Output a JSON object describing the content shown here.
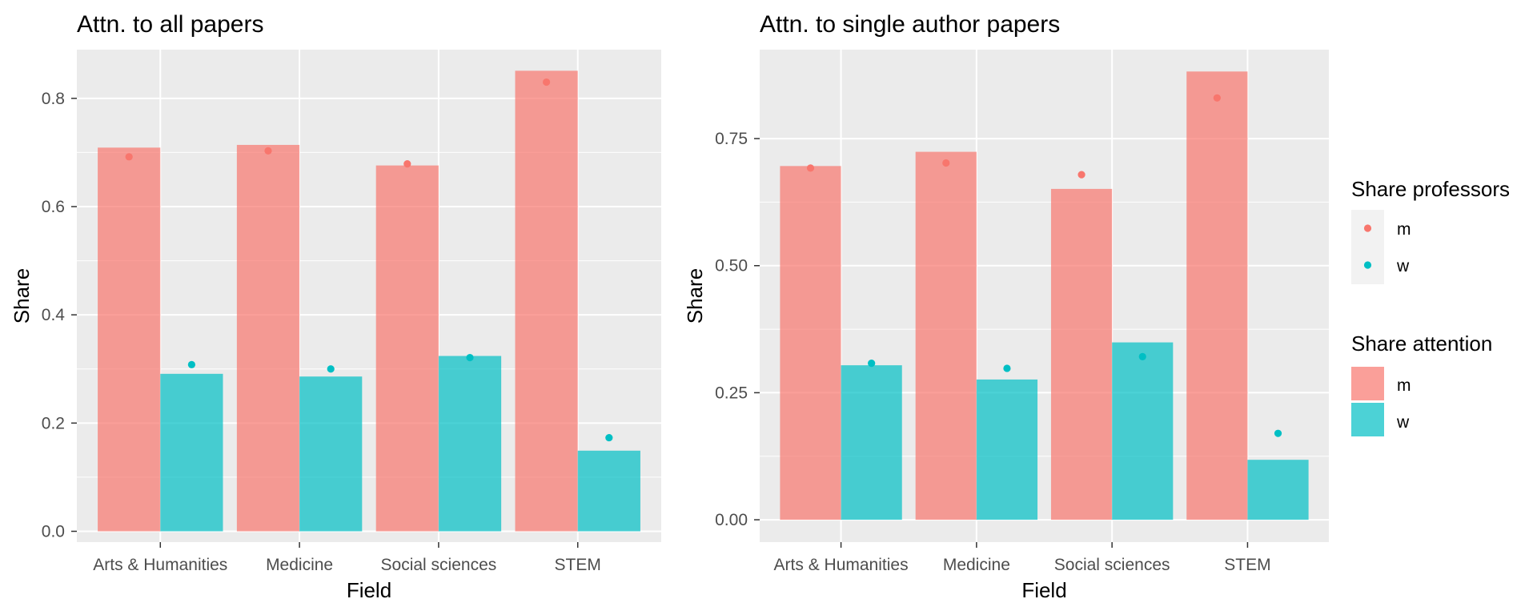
{
  "colors": {
    "m": "#F8766D",
    "w": "#00BFC4",
    "panel_bg": "#EBEBEB",
    "grid": "#FFFFFF",
    "tick_text": "#4D4D4D"
  },
  "legend": {
    "professors": {
      "title": "Share professors",
      "items": [
        {
          "key": "m",
          "label": "m"
        },
        {
          "key": "w",
          "label": "w"
        }
      ]
    },
    "attention": {
      "title": "Share attention",
      "items": [
        {
          "key": "m",
          "label": "m"
        },
        {
          "key": "w",
          "label": "w"
        }
      ]
    }
  },
  "chart_data": [
    {
      "type": "bar",
      "title": "Attn. to all papers",
      "xlabel": "Field",
      "ylabel": "Share",
      "categories": [
        "Arts & Humanities",
        "Medicine",
        "Social sciences",
        "STEM"
      ],
      "ylim": [
        -0.02,
        0.89
      ],
      "yticks": [
        0.0,
        0.2,
        0.4,
        0.6,
        0.8
      ],
      "ytick_labels": [
        "0.0",
        "0.2",
        "0.4",
        "0.6",
        "0.8"
      ],
      "grid": true,
      "legend_position": "right",
      "series": [
        {
          "name": "m",
          "kind": "bar",
          "values": [
            0.709,
            0.714,
            0.676,
            0.851
          ]
        },
        {
          "name": "w",
          "kind": "bar",
          "values": [
            0.291,
            0.286,
            0.324,
            0.149
          ]
        },
        {
          "name": "m",
          "kind": "point",
          "values": [
            0.692,
            0.703,
            0.679,
            0.83
          ]
        },
        {
          "name": "w",
          "kind": "point",
          "values": [
            0.308,
            0.3,
            0.321,
            0.173
          ]
        }
      ]
    },
    {
      "type": "bar",
      "title": "Attn. to single author papers",
      "xlabel": "Field",
      "ylabel": "Share",
      "categories": [
        "Arts & Humanities",
        "Medicine",
        "Social sciences",
        "STEM"
      ],
      "ylim": [
        -0.044,
        0.925
      ],
      "yticks": [
        0.0,
        0.25,
        0.5,
        0.75
      ],
      "ytick_labels": [
        "0.00",
        "0.25",
        "0.50",
        "0.75"
      ],
      "grid": true,
      "legend_position": "right",
      "series": [
        {
          "name": "m",
          "kind": "bar",
          "values": [
            0.696,
            0.724,
            0.651,
            0.882
          ]
        },
        {
          "name": "w",
          "kind": "bar",
          "values": [
            0.304,
            0.276,
            0.349,
            0.118
          ]
        },
        {
          "name": "m",
          "kind": "point",
          "values": [
            0.692,
            0.702,
            0.679,
            0.83
          ]
        },
        {
          "name": "w",
          "kind": "point",
          "values": [
            0.308,
            0.298,
            0.321,
            0.17
          ]
        }
      ]
    }
  ]
}
